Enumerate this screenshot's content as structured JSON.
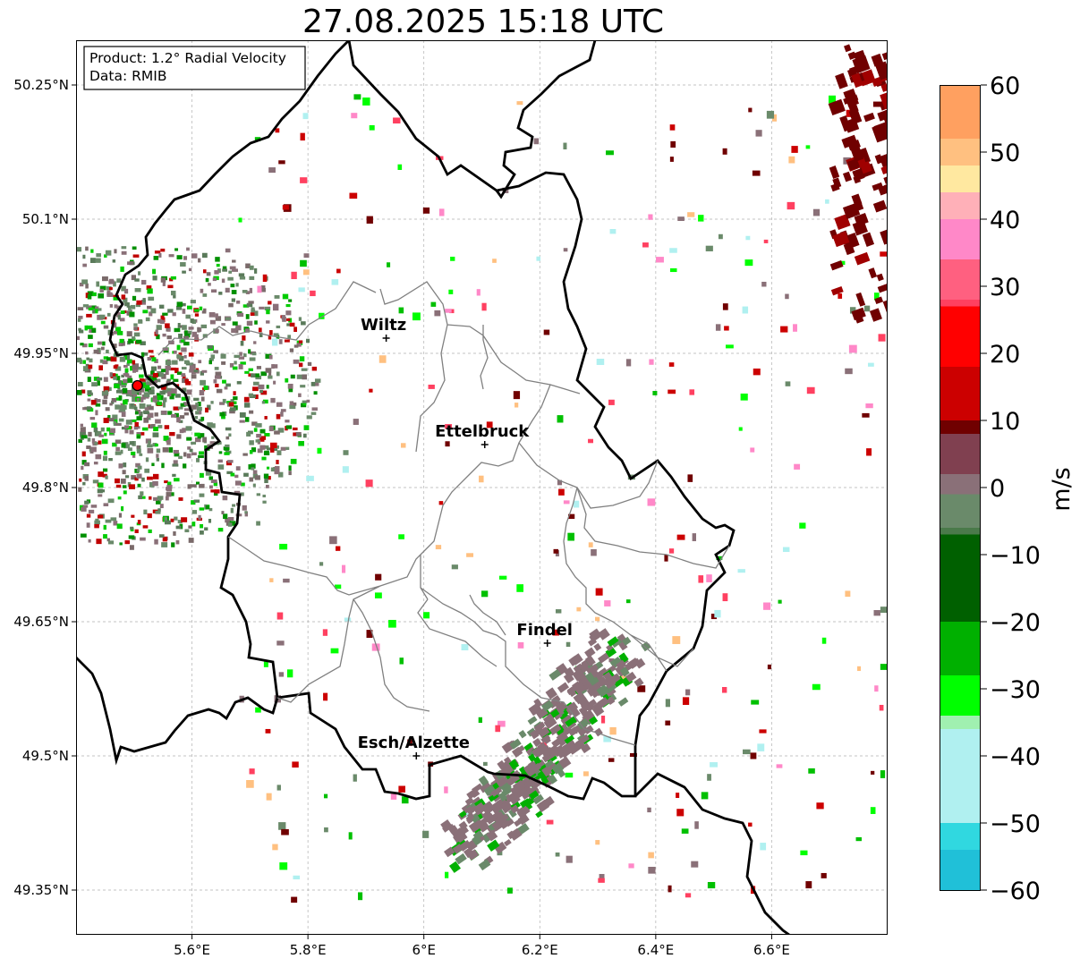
{
  "title": "27.08.2025 15:18 UTC",
  "info_box": {
    "product": "Product: 1.2° Radial Velocity",
    "data": "Data: RMIB"
  },
  "map": {
    "lon_range": [
      5.4,
      6.8
    ],
    "lat_range": [
      49.3,
      50.3
    ],
    "grid": true,
    "lon_ticks": [
      {
        "value": 5.6,
        "label": "5.6°E"
      },
      {
        "value": 5.8,
        "label": "5.8°E"
      },
      {
        "value": 6.0,
        "label": "6°E"
      },
      {
        "value": 6.2,
        "label": "6.2°E"
      },
      {
        "value": 6.4,
        "label": "6.4°E"
      },
      {
        "value": 6.6,
        "label": "6.6°E"
      }
    ],
    "lat_ticks": [
      {
        "value": 50.25,
        "label": "50.25°N"
      },
      {
        "value": 50.1,
        "label": "50.1°N"
      },
      {
        "value": 49.95,
        "label": "49.95°N"
      },
      {
        "value": 49.8,
        "label": "49.8°N"
      },
      {
        "value": 49.65,
        "label": "49.65°N"
      },
      {
        "value": 49.5,
        "label": "49.5°N"
      },
      {
        "value": 49.35,
        "label": "49.35°N"
      }
    ],
    "radar_site": {
      "lon": 5.506,
      "lat": 49.914
    },
    "cities": [
      {
        "name": "Wiltz",
        "lon": 5.935,
        "lat": 49.967
      },
      {
        "name": "Ettelbruck",
        "lon": 6.105,
        "lat": 49.848
      },
      {
        "name": "Findel",
        "lon": 6.213,
        "lat": 49.626
      },
      {
        "name": "Esch/Alzette",
        "lon": 5.987,
        "lat": 49.5
      }
    ]
  },
  "colorbar": {
    "label": "m/s",
    "min": -60,
    "max": 60,
    "ticks": [
      {
        "value": 60,
        "label": "60"
      },
      {
        "value": 50,
        "label": "50"
      },
      {
        "value": 40,
        "label": "40"
      },
      {
        "value": 30,
        "label": "30"
      },
      {
        "value": 20,
        "label": "20"
      },
      {
        "value": 10,
        "label": "10"
      },
      {
        "value": 0,
        "label": "0"
      },
      {
        "value": -10,
        "label": "−10"
      },
      {
        "value": -20,
        "label": "−20"
      },
      {
        "value": -30,
        "label": "−30"
      },
      {
        "value": -40,
        "label": "−40"
      },
      {
        "value": -50,
        "label": "−50"
      },
      {
        "value": -60,
        "label": "−60"
      }
    ],
    "stops": [
      {
        "value": 60,
        "color": "#ffa060"
      },
      {
        "value": 52,
        "color": "#ffc080"
      },
      {
        "value": 48,
        "color": "#ffe8a0"
      },
      {
        "value": 44,
        "color": "#ffb0b8"
      },
      {
        "value": 40,
        "color": "#ff88c8"
      },
      {
        "value": 34,
        "color": "#ff6080"
      },
      {
        "value": 28,
        "color": "#ff4060"
      },
      {
        "value": 27,
        "color": "#ff0000"
      },
      {
        "value": 18,
        "color": "#cc0000"
      },
      {
        "value": 10,
        "color": "#700000"
      },
      {
        "value": 8,
        "color": "#804050"
      },
      {
        "value": 2,
        "color": "#8a7078"
      },
      {
        "value": -1,
        "color": "#6a8a6a"
      },
      {
        "value": -6,
        "color": "#4a7a4a"
      },
      {
        "value": -7,
        "color": "#006000"
      },
      {
        "value": -20,
        "color": "#00b000"
      },
      {
        "value": -28,
        "color": "#00ff00"
      },
      {
        "value": -34,
        "color": "#a0f0b0"
      },
      {
        "value": -36,
        "color": "#b0f0f0"
      },
      {
        "value": -50,
        "color": "#30d8e0"
      },
      {
        "value": -54,
        "color": "#20c0d8"
      },
      {
        "value": -60,
        "color": "#2080c0"
      }
    ]
  }
}
